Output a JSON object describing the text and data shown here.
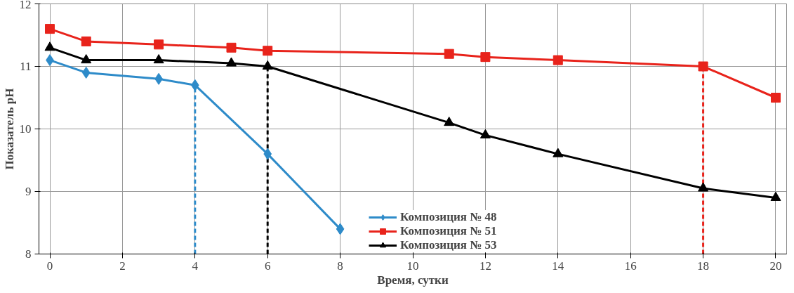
{
  "chart_data": {
    "type": "line",
    "xlabel": "Время, сутки",
    "ylabel": "Показатель pH",
    "xlim": [
      -0.3,
      20.3
    ],
    "ylim": [
      8,
      12
    ],
    "xticks": [
      0,
      2,
      4,
      6,
      8,
      10,
      12,
      14,
      16,
      18,
      20
    ],
    "yticks": [
      8,
      9,
      10,
      11,
      12
    ],
    "grid": true,
    "legend": "bottom right",
    "series": [
      {
        "name": "Композиция № 48",
        "color": "#2e8bc9",
        "marker": "diamond",
        "x": [
          0,
          1,
          3,
          4,
          6,
          8
        ],
        "values": [
          11.1,
          10.9,
          10.8,
          10.7,
          9.6,
          8.4
        ]
      },
      {
        "name": "Композиция № 51",
        "color": "#e8231b",
        "marker": "square",
        "x": [
          0,
          1,
          3,
          5,
          6,
          11,
          12,
          14,
          18,
          20
        ],
        "values": [
          11.6,
          11.4,
          11.35,
          11.3,
          11.25,
          11.2,
          11.15,
          11.1,
          11.0,
          10.5
        ]
      },
      {
        "name": "Композиция № 53",
        "color": "#000000",
        "marker": "triangle",
        "x": [
          0,
          1,
          3,
          5,
          6,
          11,
          12,
          14,
          18,
          20
        ],
        "values": [
          11.3,
          11.1,
          11.1,
          11.05,
          11.0,
          10.1,
          9.9,
          9.6,
          9.05,
          8.9
        ]
      }
    ],
    "ref_lines": [
      {
        "axis": "x",
        "value": 4,
        "color": "#2e8bc9",
        "line_style": "dashed"
      },
      {
        "axis": "x",
        "value": 6,
        "color": "#000000",
        "line_style": "dashed"
      },
      {
        "axis": "x",
        "value": 18,
        "color": "#e8231b",
        "line_style": "dashed"
      }
    ]
  }
}
